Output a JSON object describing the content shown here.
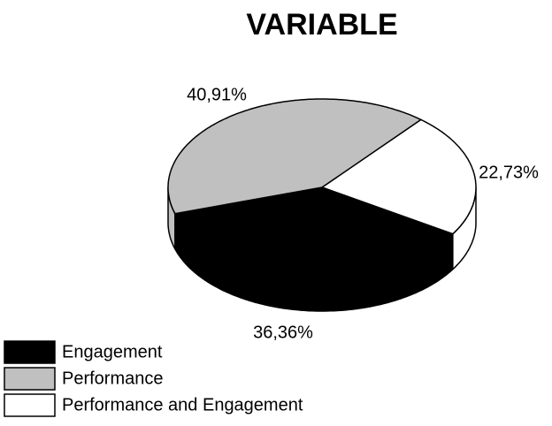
{
  "chart_data": {
    "type": "pie",
    "title": "VARIABLE",
    "categories": [
      "Engagement",
      "Performance",
      "Performance and Engagement"
    ],
    "values": [
      36.36,
      40.91,
      22.73
    ],
    "value_labels": [
      "36,36%",
      "40,91%",
      "22,73%"
    ],
    "colors": [
      "#000000",
      "#c0c0c0",
      "#ffffff"
    ]
  }
}
